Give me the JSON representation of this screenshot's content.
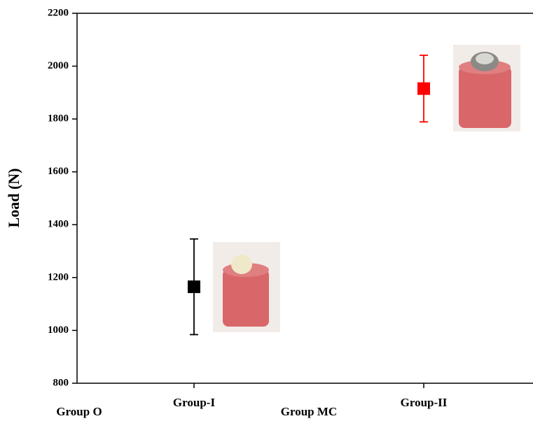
{
  "chart_data": {
    "type": "errorbar",
    "ylabel": "Load (N)",
    "categories": [
      "Group O",
      "Group-I",
      "Group MC",
      "Group-II"
    ],
    "values": [
      null,
      1165,
      null,
      1915
    ],
    "errors": [
      null,
      181,
      null,
      126
    ],
    "colors": [
      null,
      "#000000",
      null,
      "#ff0000"
    ],
    "ylim": [
      800,
      2200
    ],
    "yticks": [
      800,
      1000,
      1200,
      1400,
      1600,
      1800,
      2000,
      2200
    ]
  }
}
